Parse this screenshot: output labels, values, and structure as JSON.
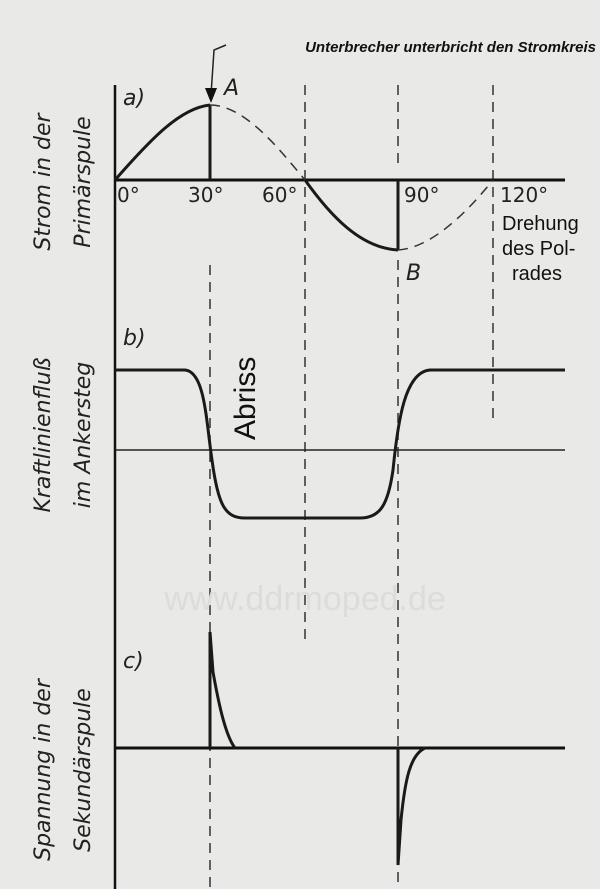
{
  "header": {
    "title": "Unterbrecher unterbricht den Stromkreis"
  },
  "panels": [
    {
      "label": "a)",
      "ylabel": [
        "Strom in der",
        "Primärspule"
      ],
      "points": [
        "A",
        "B"
      ]
    },
    {
      "label": "b)",
      "ylabel": [
        "Kraftlinienfluß",
        "im Ankersteg"
      ],
      "annotation": "Abriss"
    },
    {
      "label": "c)",
      "ylabel": [
        "Spannung in der",
        "Sekundärspule"
      ]
    }
  ],
  "angles": [
    "0°",
    "30°",
    "60°",
    "90°",
    "120°"
  ],
  "xlabel": [
    "Drehung",
    "des Pol-",
    "rades"
  ],
  "watermark": "www.ddrmoped.de"
}
